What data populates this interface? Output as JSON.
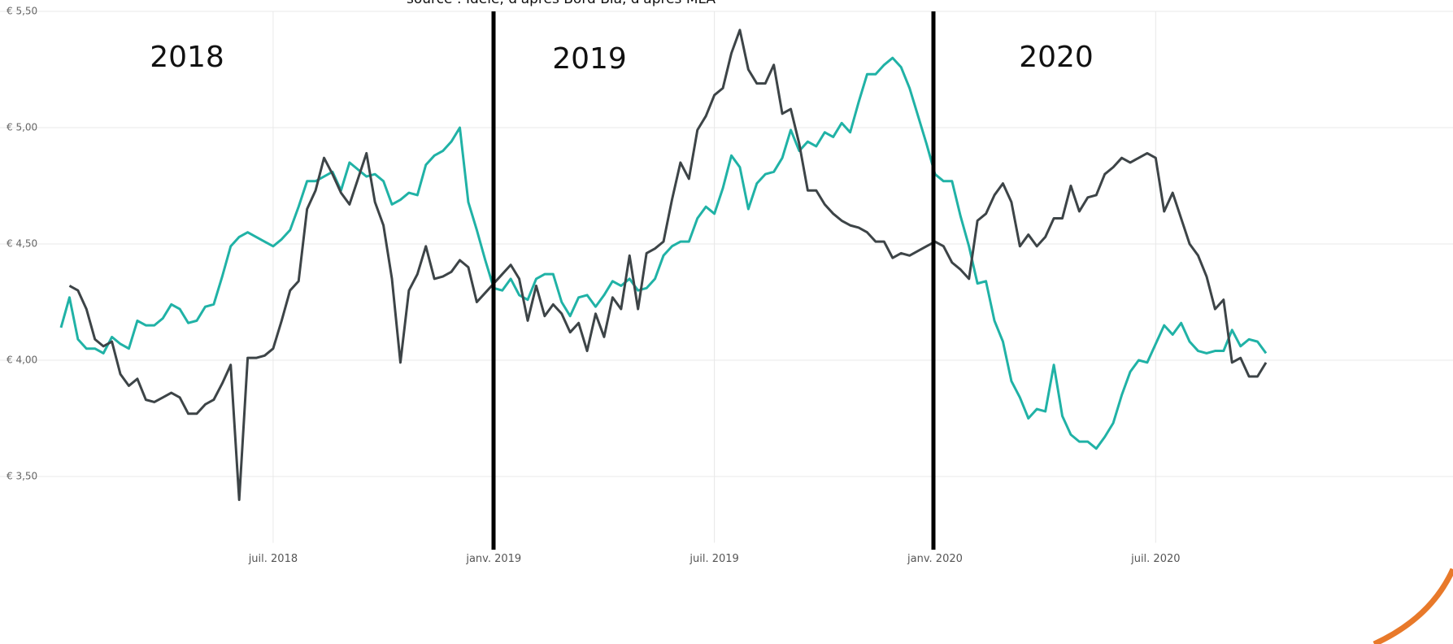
{
  "chart_data": {
    "type": "line",
    "subtitle": "source : Idele, d'après Bord Bia, d'après MLA",
    "annotations": [
      "2018",
      "2019",
      "2020"
    ],
    "categories": [
      null,
      null,
      null,
      null,
      null,
      null,
      null,
      null,
      null,
      null,
      null,
      null,
      null,
      null,
      null,
      null,
      null,
      null,
      null,
      null,
      null,
      null,
      null,
      null,
      null,
      "juil. 2018",
      null,
      null,
      null,
      null,
      null,
      null,
      null,
      null,
      null,
      null,
      null,
      null,
      null,
      null,
      null,
      null,
      null,
      null,
      null,
      null,
      null,
      null,
      null,
      null,
      null,
      "janv. 2019",
      null,
      null,
      null,
      null,
      null,
      null,
      null,
      null,
      null,
      null,
      null,
      null,
      null,
      null,
      null,
      null,
      null,
      null,
      null,
      null,
      null,
      null,
      null,
      null,
      null,
      "juil. 2019",
      null,
      null,
      null,
      null,
      null,
      null,
      null,
      null,
      null,
      null,
      null,
      null,
      null,
      null,
      null,
      null,
      null,
      null,
      null,
      null,
      null,
      null,
      null,
      null,
      null,
      "janv. 2020",
      null,
      null,
      null,
      null,
      null,
      null,
      null,
      null,
      null,
      null,
      null,
      null,
      null,
      null,
      null,
      null,
      null,
      null,
      null,
      null,
      null,
      null,
      null,
      null,
      null,
      "juil. 2020",
      null,
      null,
      null,
      null,
      null,
      null,
      null,
      null,
      null,
      null,
      null,
      null,
      null
    ],
    "series": [
      {
        "color": "#20b2a6",
        "values": [
          4.14,
          4.27,
          4.09,
          4.05,
          4.05,
          4.03,
          4.1,
          4.07,
          4.05,
          4.17,
          4.15,
          4.15,
          4.18,
          4.24,
          4.22,
          4.16,
          4.17,
          4.23,
          4.24,
          4.36,
          4.49,
          4.53,
          4.55,
          4.53,
          4.51,
          4.49,
          4.52,
          4.56,
          4.66,
          4.77,
          4.77,
          4.79,
          4.81,
          4.73,
          4.85,
          4.82,
          4.79,
          4.8,
          4.77,
          4.67,
          4.69,
          4.72,
          4.71,
          4.84,
          4.88,
          4.9,
          4.94,
          5.0,
          4.68,
          4.56,
          4.43,
          4.31,
          4.3,
          4.35,
          4.28,
          4.26,
          4.35,
          4.37,
          4.37,
          4.25,
          4.19,
          4.27,
          4.28,
          4.23,
          4.28,
          4.34,
          4.32,
          4.35,
          4.3,
          4.31,
          4.35,
          4.45,
          4.49,
          4.51,
          4.51,
          4.61,
          4.66,
          4.63,
          4.74,
          4.88,
          4.83,
          4.65,
          4.76,
          4.8,
          4.81,
          4.87,
          4.99,
          4.9,
          4.94,
          4.92,
          4.98,
          4.96,
          5.02,
          4.98,
          5.11,
          5.23,
          5.23,
          5.27,
          5.3,
          5.26,
          5.17,
          5.05,
          4.93,
          4.8,
          4.77,
          4.77,
          4.62,
          4.49,
          4.33,
          4.34,
          4.17,
          4.08,
          3.91,
          3.84,
          3.75,
          3.79,
          3.78,
          3.98,
          3.76,
          3.68,
          3.65,
          3.65,
          3.62,
          3.67,
          3.73,
          3.85,
          3.95,
          4.0,
          3.99,
          4.07,
          4.15,
          4.11,
          4.16,
          4.08,
          4.04,
          4.03,
          4.04,
          4.04,
          4.13,
          4.06,
          4.09,
          4.08,
          4.03
        ]
      },
      {
        "color": "#3d4447",
        "values": [
          null,
          4.32,
          4.3,
          4.22,
          4.09,
          4.06,
          4.08,
          3.94,
          3.89,
          3.92,
          3.83,
          3.82,
          3.84,
          3.86,
          3.84,
          3.77,
          3.77,
          3.81,
          3.83,
          3.9,
          3.98,
          3.4,
          4.01,
          4.01,
          4.02,
          4.05,
          4.17,
          4.3,
          4.34,
          4.65,
          4.73,
          4.87,
          4.8,
          4.72,
          4.67,
          4.78,
          4.89,
          4.68,
          4.58,
          4.35,
          3.99,
          4.3,
          4.37,
          4.49,
          4.35,
          4.36,
          4.38,
          4.43,
          4.4,
          4.25,
          4.29,
          4.33,
          4.37,
          4.41,
          4.35,
          4.17,
          4.32,
          4.19,
          4.24,
          4.2,
          4.12,
          4.16,
          4.04,
          4.2,
          4.1,
          4.27,
          4.22,
          4.45,
          4.22,
          4.46,
          4.48,
          4.51,
          4.69,
          4.85,
          4.78,
          4.99,
          5.05,
          5.14,
          5.17,
          5.32,
          5.42,
          5.25,
          5.19,
          5.19,
          5.27,
          5.06,
          5.08,
          4.93,
          4.73,
          4.73,
          4.67,
          4.63,
          4.6,
          4.58,
          4.57,
          4.55,
          4.51,
          4.51,
          4.44,
          4.46,
          4.45,
          4.47,
          4.49,
          4.51,
          4.49,
          4.42,
          4.39,
          4.35,
          4.6,
          4.63,
          4.71,
          4.76,
          4.68,
          4.49,
          4.54,
          4.49,
          4.53,
          4.61,
          4.61,
          4.75,
          4.64,
          4.7,
          4.71,
          4.8,
          4.83,
          4.87,
          4.85,
          4.87,
          4.89,
          4.87,
          4.64,
          4.72,
          4.61,
          4.5,
          4.45,
          4.36,
          4.22,
          4.26,
          3.99,
          4.01,
          3.93,
          3.93,
          3.99
        ]
      }
    ],
    "ylim": [
      3.25,
      5.5
    ],
    "yticks": [
      {
        "value": 3.5,
        "label": "€ 3,50"
      },
      {
        "value": 4,
        "label": "€ 4,00"
      },
      {
        "value": 4.5,
        "label": "€ 4,50"
      },
      {
        "value": 5,
        "label": "€ 5,00"
      },
      {
        "value": 5.5,
        "label": "€ 5,50"
      }
    ],
    "grid": true
  }
}
